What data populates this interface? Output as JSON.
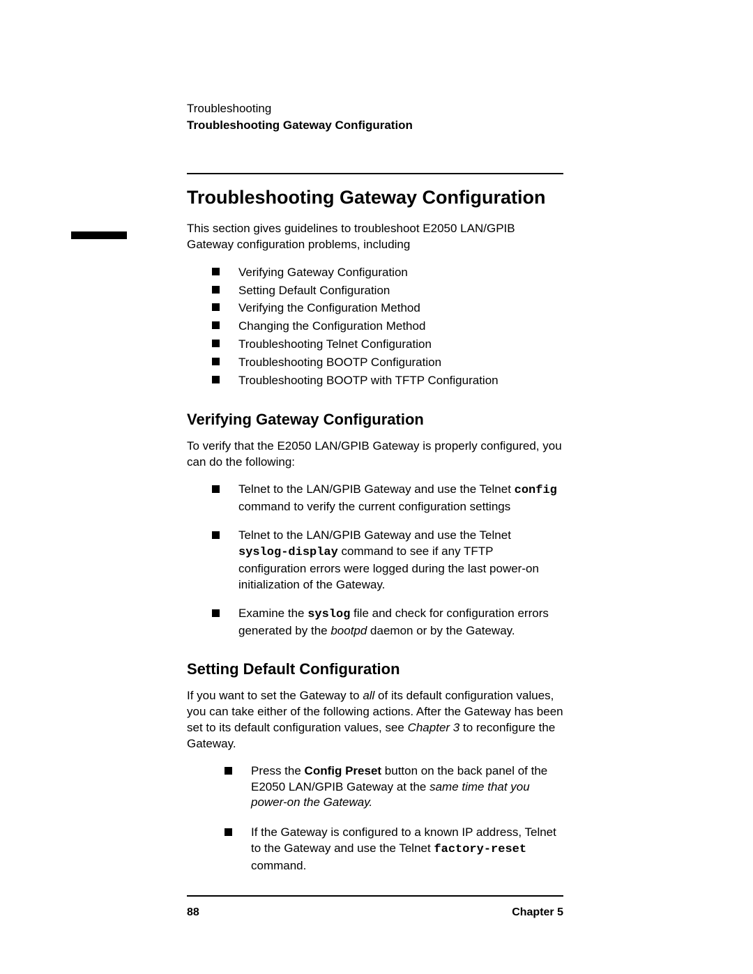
{
  "runningHeader": {
    "line1": "Troubleshooting",
    "line2": "Troubleshooting Gateway Configuration"
  },
  "title": "Troubleshooting Gateway Configuration",
  "intro": "This section gives guidelines to troubleshoot E2050 LAN/GPIB Gateway configuration problems, including",
  "topics": [
    "Verifying Gateway Configuration",
    "Setting Default Configuration",
    "Verifying the Configuration Method",
    "Changing the Configuration Method",
    "Troubleshooting Telnet Configuration",
    "Troubleshooting BOOTP Configuration",
    "Troubleshooting BOOTP with TFTP Configuration"
  ],
  "section1": {
    "heading": "Verifying Gateway Configuration",
    "intro": "To verify that the E2050 LAN/GPIB Gateway is properly configured, you can do the following:",
    "items": {
      "b1a": "Telnet to the LAN/GPIB Gateway and use the Telnet ",
      "b1cmd": "config",
      "b1b": " command to verify the current configuration settings",
      "b2a": "Telnet to the LAN/GPIB Gateway and use the Telnet ",
      "b2cmd": "syslog-display",
      "b2b": " command to see if any TFTP configuration errors were logged during the last power-on initialization of the Gateway.",
      "b3a": "Examine the ",
      "b3cmd": "syslog",
      "b3b": " file and check for configuration errors generated by the ",
      "b3it": "bootpd",
      "b3c": " daemon or by the Gateway."
    }
  },
  "section2": {
    "heading": "Setting Default Configuration",
    "intro_a": "If you want to set the Gateway to ",
    "intro_it": "all",
    "intro_b": " of its default configuration values, you can take either of the following actions. After the Gateway has been set to its default configuration values, see ",
    "intro_ch": "Chapter 3",
    "intro_c": " to reconfigure the Gateway.",
    "items": {
      "b1a": " Press the ",
      "b1bold": "Config Preset",
      "b1b": " button on the back panel of the E2050 LAN/GPIB Gateway at the ",
      "b1it": "same time that you power-on the Gateway.",
      "b2a": " If the Gateway is configured to a known IP address, Telnet to the Gateway and use the Telnet ",
      "b2cmd": "factory-reset",
      "b2b": " command."
    }
  },
  "footer": {
    "pageNum": "88",
    "chapter": "Chapter 5"
  }
}
